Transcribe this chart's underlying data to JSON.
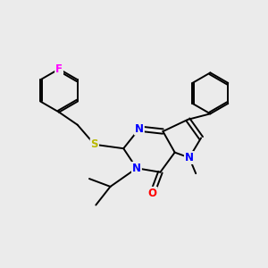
{
  "bg_color": "#ebebeb",
  "atom_colors": {
    "N": "#0000ff",
    "O": "#ff0000",
    "S": "#b8b800",
    "F": "#ff00ff",
    "C": "#000000"
  },
  "bond_color": "#000000",
  "bond_lw": 1.4,
  "figsize": [
    3.0,
    3.0
  ],
  "dpi": 100
}
